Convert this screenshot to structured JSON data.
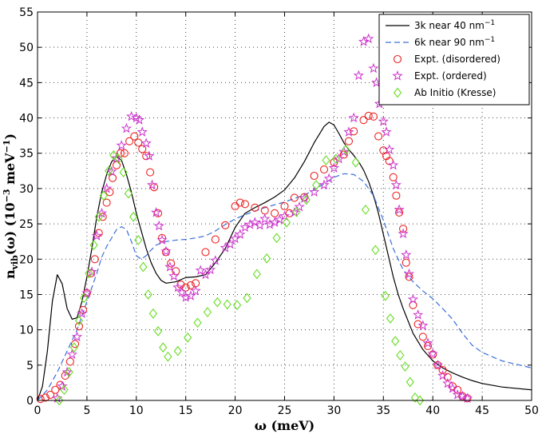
{
  "chart_data": {
    "type": "line",
    "title": "",
    "xlabel": "ω (meV)",
    "ylabel_main": "n",
    "ylabel_sub": "vib",
    "ylabel_arg": "(ω)  (10",
    "ylabel_exp1": "−3",
    "ylabel_unit": " meV",
    "ylabel_exp2": "−1",
    "ylabel_close": ")",
    "xlim": [
      0,
      50
    ],
    "ylim": [
      0,
      55
    ],
    "xticks": [
      0,
      5,
      10,
      15,
      20,
      25,
      30,
      35,
      40,
      45,
      50
    ],
    "yticks": [
      0,
      5,
      10,
      15,
      20,
      25,
      30,
      35,
      40,
      45,
      50,
      55
    ],
    "grid": true,
    "legend_position": "top-right",
    "series": [
      {
        "name": "3k near 40 nm",
        "name_sup": "−1",
        "style": "solid",
        "color": "#000000",
        "x": [
          0,
          0.5,
          1,
          1.5,
          2,
          2.5,
          3,
          3.5,
          4,
          4.5,
          5,
          5.5,
          6,
          6.5,
          7,
          7.5,
          8,
          8.5,
          9,
          9.5,
          10,
          10.5,
          11,
          11.5,
          12,
          12.5,
          13,
          14,
          15,
          16,
          17,
          18,
          19,
          20,
          21,
          22,
          23,
          24,
          25,
          26,
          27,
          28,
          29,
          29.5,
          30,
          30.5,
          31,
          31.5,
          32,
          32.5,
          33,
          33.5,
          34,
          34.5,
          35,
          35.5,
          36,
          36.5,
          37,
          38,
          39,
          40,
          41,
          42,
          43,
          44,
          45,
          47,
          50
        ],
        "y": [
          0,
          2,
          7,
          14,
          17.8,
          16.5,
          13,
          11.5,
          11.7,
          14,
          17.5,
          21.5,
          26,
          29.5,
          32,
          33.8,
          34.5,
          34,
          32,
          29.5,
          26.5,
          24,
          21.5,
          19.5,
          18,
          17,
          16.6,
          16.8,
          17.4,
          17.5,
          17.8,
          19.5,
          21.5,
          24.5,
          26.5,
          27.3,
          28,
          28.8,
          29.8,
          31.5,
          33.8,
          36.5,
          38.8,
          39.4,
          39,
          37.8,
          36.5,
          35.5,
          34.7,
          33.8,
          32.6,
          31,
          29,
          26.5,
          23.5,
          20.5,
          17.5,
          15,
          13,
          9.5,
          7.2,
          5.6,
          4.6,
          3.9,
          3.3,
          2.8,
          2.4,
          1.9,
          1.5
        ]
      },
      {
        "name": "6k near 90 nm",
        "name_sup": "−1",
        "style": "dashed",
        "color": "#3a6fd8",
        "x": [
          0,
          1,
          2,
          3,
          4,
          5,
          5.5,
          6,
          6.5,
          7,
          7.5,
          8,
          8.5,
          9,
          9.5,
          10,
          10.5,
          11,
          11.5,
          12,
          13,
          14,
          15,
          16,
          17,
          18,
          19,
          20,
          21,
          22,
          23,
          24,
          25,
          26,
          27,
          28,
          29,
          30,
          31,
          32,
          33,
          34,
          35,
          36,
          37,
          38,
          39,
          40,
          41,
          42,
          43,
          44,
          45,
          47,
          50
        ],
        "y": [
          0,
          1.5,
          4,
          7,
          10,
          14,
          16,
          18,
          20.3,
          21.8,
          23,
          24.2,
          24.6,
          24.2,
          22.5,
          20.5,
          20,
          20.5,
          21.3,
          22,
          22.5,
          22.7,
          22.8,
          23,
          23.3,
          24,
          24.9,
          25.7,
          26.3,
          26.8,
          27.3,
          27.7,
          28.1,
          28.6,
          29.1,
          29.8,
          30.7,
          31.6,
          32.1,
          32,
          31,
          29,
          25.5,
          21.5,
          18.5,
          16.8,
          15.5,
          14.4,
          13,
          11.5,
          9.5,
          7.8,
          6.8,
          5.6,
          4.6
        ]
      },
      {
        "name": "Expt. (disordered)",
        "marker": "circle",
        "color": "#ee2222",
        "x": [
          0.3,
          0.8,
          1.3,
          1.8,
          2.3,
          2.8,
          3.3,
          3.8,
          4.2,
          4.6,
          5,
          5.4,
          5.8,
          6.2,
          6.6,
          7,
          7.3,
          7.6,
          8,
          8.4,
          8.8,
          9.3,
          9.8,
          10.2,
          10.6,
          11,
          11.4,
          11.8,
          12.2,
          12.6,
          13,
          13.5,
          14,
          14.5,
          15,
          15.5,
          16,
          17,
          18,
          19,
          20,
          20.5,
          21,
          22,
          23,
          24,
          25,
          25.5,
          26,
          27,
          28,
          29,
          30,
          31,
          31.5,
          32,
          33,
          33.5,
          34,
          34.5,
          35,
          35.3,
          35.6,
          36,
          36.3,
          36.6,
          37,
          37.3,
          37.6,
          38,
          38.5,
          39,
          39.5,
          40,
          40.5,
          41,
          41.5,
          42,
          42.5,
          43,
          43.5
        ],
        "y": [
          0.2,
          0.4,
          0.8,
          1.5,
          2.2,
          3.5,
          5.5,
          8,
          10.5,
          12.8,
          15.2,
          18,
          20,
          23.7,
          26,
          28,
          29.5,
          31.5,
          33.3,
          35,
          35,
          36.7,
          37.4,
          36.5,
          35.6,
          34.6,
          32.3,
          30.2,
          26.5,
          23,
          21,
          19.4,
          18.3,
          16.4,
          16,
          16.3,
          16.6,
          21,
          22.8,
          24.8,
          27.5,
          28,
          27.8,
          27.3,
          26.9,
          26.5,
          27.5,
          26.5,
          28.7,
          28.8,
          31.8,
          32.7,
          33.7,
          34.8,
          36.7,
          38.1,
          39.7,
          40.3,
          40.2,
          37.4,
          35.4,
          34.6,
          33.9,
          31.6,
          29,
          26.6,
          24.3,
          19.5,
          17.5,
          13.5,
          10.8,
          9,
          7.7,
          6.5,
          5,
          4.3,
          3.3,
          2,
          1.5,
          0.6,
          0.3
        ]
      },
      {
        "name": "Expt. (ordered)",
        "marker": "star",
        "color": "#cc33cc",
        "x": [
          2,
          2.5,
          3,
          3.5,
          4,
          4.5,
          5,
          5.5,
          6,
          6.5,
          7,
          7.5,
          8,
          8.5,
          9,
          9.5,
          10,
          10.3,
          10.6,
          11,
          11.3,
          11.6,
          12,
          12.3,
          12.6,
          13,
          13.4,
          13.8,
          14.2,
          14.6,
          15,
          15.5,
          16,
          16.5,
          17,
          17.5,
          18,
          19,
          19.5,
          20,
          20.5,
          21,
          21.5,
          22,
          22.5,
          23,
          23.5,
          24,
          24.5,
          25,
          26,
          26.5,
          27,
          28,
          29,
          29.5,
          30,
          30.5,
          31,
          31.5,
          32,
          32.5,
          33,
          33.5,
          34,
          34.3,
          34.6,
          35,
          35.3,
          35.6,
          36,
          36.3,
          36.6,
          37,
          37.3,
          37.6,
          38,
          38.5,
          39,
          39.5,
          40,
          40.5,
          41,
          41.5,
          42,
          42.5,
          43,
          43.5
        ],
        "y": [
          0.3,
          2,
          4,
          6.5,
          9,
          12.3,
          15.2,
          18.2,
          23.3,
          26.5,
          30,
          32.4,
          34.3,
          36.1,
          38.5,
          40.2,
          40,
          39.7,
          38,
          36.4,
          34.6,
          30.5,
          26.6,
          24.7,
          22.7,
          21.1,
          18.9,
          17.6,
          16,
          15.3,
          14.6,
          14.8,
          15.5,
          18.4,
          17.8,
          18.5,
          19.8,
          21.6,
          22.1,
          22.9,
          23.5,
          24.5,
          24.9,
          25.2,
          24.8,
          25.7,
          24.9,
          25.2,
          25.6,
          26.1,
          26.6,
          27.4,
          28.6,
          29.5,
          30.5,
          31.4,
          32.9,
          34.2,
          35.2,
          38,
          40,
          46,
          50.8,
          51.2,
          47,
          45,
          42,
          39.5,
          38,
          35.5,
          33.3,
          30.5,
          27,
          23.6,
          20.6,
          17.9,
          14.3,
          12.1,
          10.6,
          8.1,
          6.6,
          5,
          3.5,
          2.4,
          1.7,
          0.8,
          0.6,
          0.3
        ]
      },
      {
        "name": "Ab Initio (Kresse)",
        "marker": "diamond",
        "color": "#66dd22",
        "x": [
          2.2,
          2.7,
          3.2,
          3.7,
          4.2,
          4.7,
          5.2,
          5.7,
          6.2,
          6.7,
          7.2,
          7.7,
          8.2,
          8.7,
          9.2,
          9.7,
          10.2,
          10.7,
          11.2,
          11.7,
          12.2,
          12.7,
          13.2,
          14.2,
          15.2,
          16.2,
          17.2,
          18.2,
          19.2,
          20.2,
          21.2,
          22.2,
          23.2,
          24.2,
          25.2,
          26.2,
          27.2,
          28.2,
          29.2,
          30.2,
          31.2,
          32.2,
          33.2,
          34.2,
          35.2,
          35.7,
          36.2,
          36.7,
          37.2,
          37.7,
          38.2,
          38.7
        ],
        "y": [
          0,
          1.5,
          4,
          7.5,
          11.3,
          14.5,
          18,
          22,
          26,
          29,
          32.5,
          34.7,
          34.2,
          32.3,
          29.3,
          26,
          22.7,
          18.9,
          15,
          12.3,
          9.8,
          7.5,
          6.2,
          7,
          8.9,
          11,
          12.5,
          13.9,
          13.6,
          13.5,
          14.5,
          17.9,
          20.1,
          23,
          25.2,
          26.7,
          28.4,
          30.5,
          34,
          34.2,
          35.5,
          33.7,
          27,
          21.3,
          14.8,
          11.6,
          8.4,
          6.4,
          4.8,
          2.6,
          0.4,
          0
        ]
      }
    ]
  }
}
